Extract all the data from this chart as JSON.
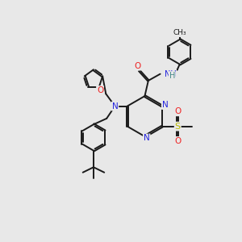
{
  "bg_color": "#e8e8e8",
  "bond_color": "#1a1a1a",
  "N_color": "#2222dd",
  "O_color": "#ee2222",
  "S_color": "#bbbb00",
  "H_color": "#448888",
  "lw": 1.4,
  "dbo": 0.035,
  "xlim": [
    0,
    10
  ],
  "ylim": [
    0,
    10
  ]
}
